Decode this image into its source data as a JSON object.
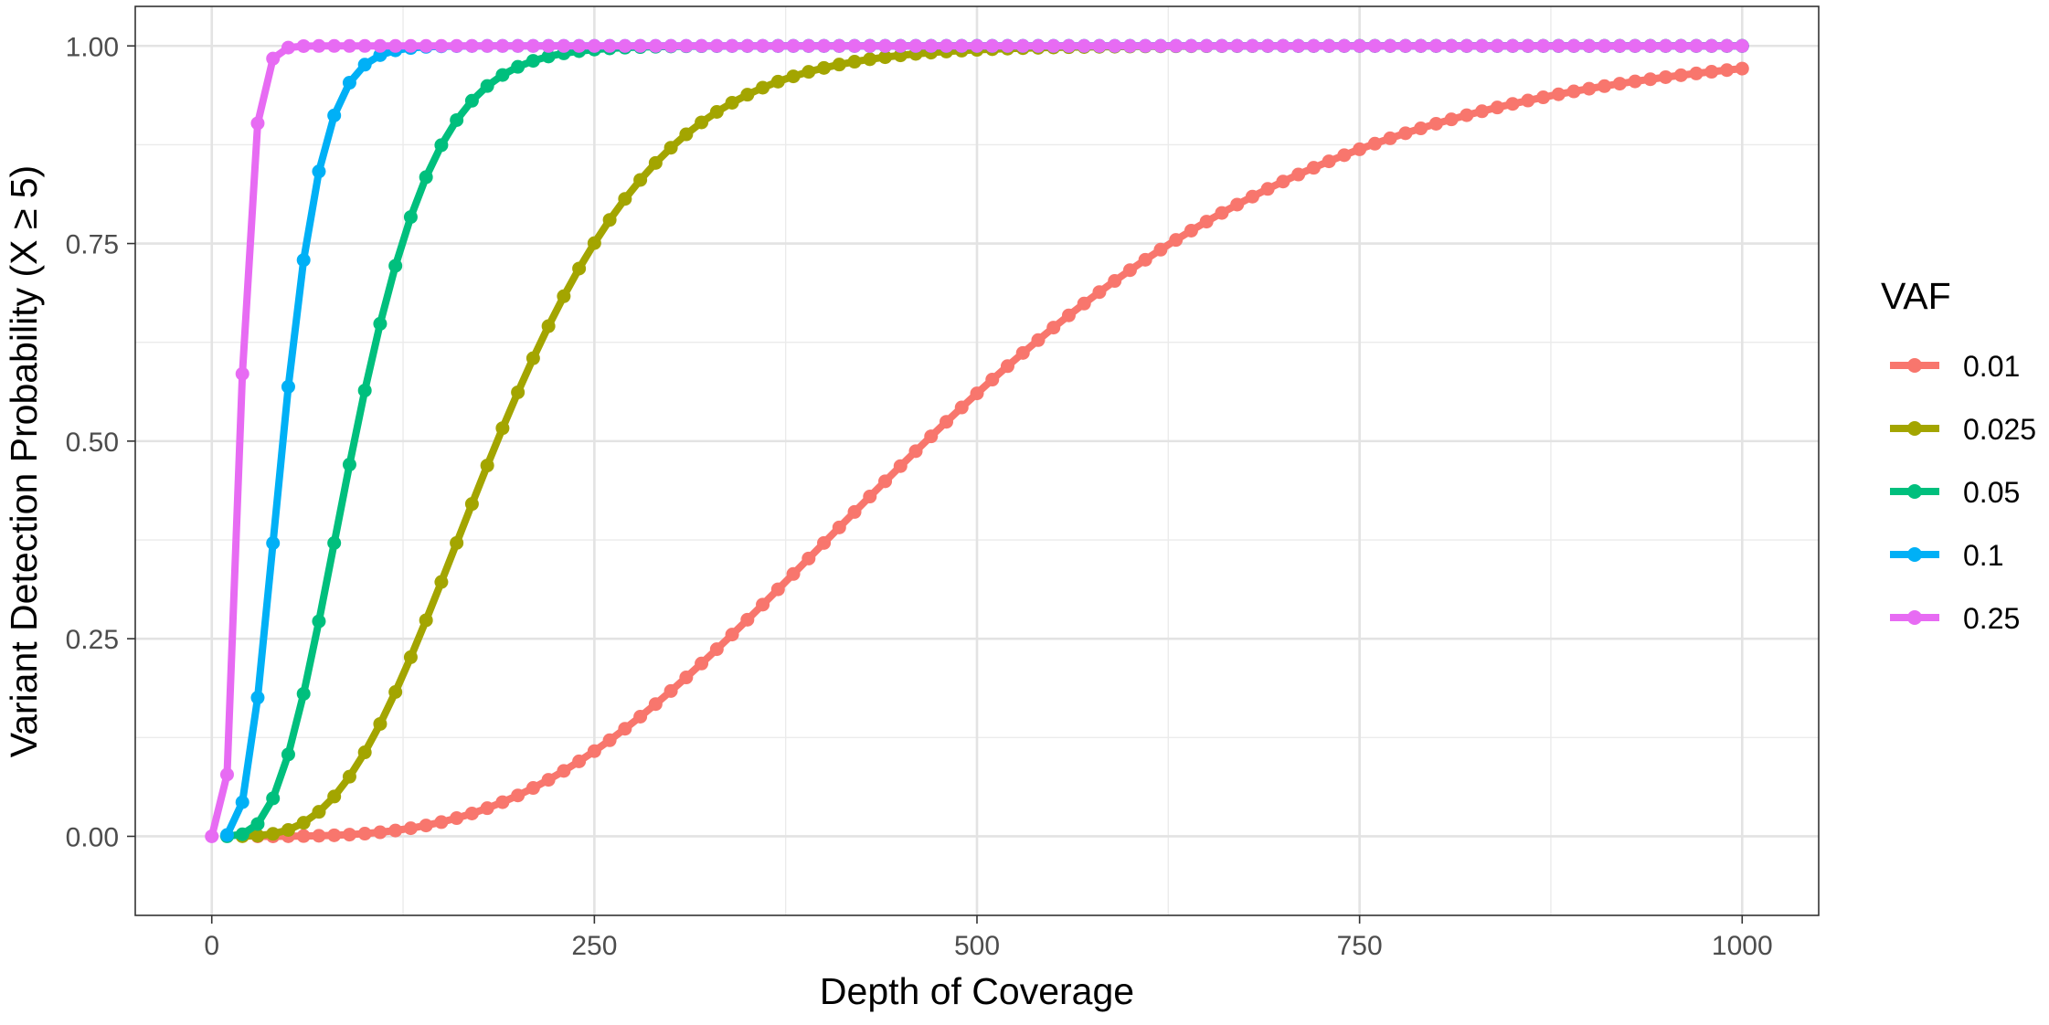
{
  "chart_data": {
    "type": "line",
    "title": "",
    "xlabel": "Depth of Coverage",
    "ylabel": "Variant Detection Probability (X ≥ 5)",
    "xlim": [
      -50,
      1050
    ],
    "ylim": [
      -0.1,
      1.05
    ],
    "x_ticks": [
      0,
      250,
      500,
      750,
      1000
    ],
    "x_tick_labels": [
      "0",
      "250",
      "500",
      "750",
      "1000"
    ],
    "y_ticks": [
      0,
      0.25,
      0.5,
      0.75,
      1.0
    ],
    "y_tick_labels": [
      "0.00",
      "0.25",
      "0.50",
      "0.75",
      "1.00"
    ],
    "grid": true,
    "legend": {
      "title": "VAF",
      "position": "right"
    },
    "series": [
      {
        "name": "0.01",
        "color": "#F8766D",
        "stat": "binom_upper",
        "p": 0.01,
        "k": 5,
        "x_start": 30,
        "x_end": 1000,
        "x_step": 10
      },
      {
        "name": "0.025",
        "color": "#A3A500",
        "stat": "binom_upper",
        "p": 0.025,
        "k": 5,
        "x_start": 20,
        "x_end": 1000,
        "x_step": 10
      },
      {
        "name": "0.05",
        "color": "#00BF7D",
        "stat": "binom_upper",
        "p": 0.05,
        "k": 5,
        "x_start": 10,
        "x_end": 1000,
        "x_step": 10
      },
      {
        "name": "0.1",
        "color": "#00B0F6",
        "stat": "binom_upper",
        "p": 0.1,
        "k": 5,
        "x_start": 10,
        "x_end": 1000,
        "x_step": 10
      },
      {
        "name": "0.25",
        "color": "#E76BF3",
        "stat": "binom_upper",
        "p": 0.25,
        "k": 5,
        "x_start": 0,
        "x_end": 1000,
        "x_step": 10
      }
    ]
  }
}
